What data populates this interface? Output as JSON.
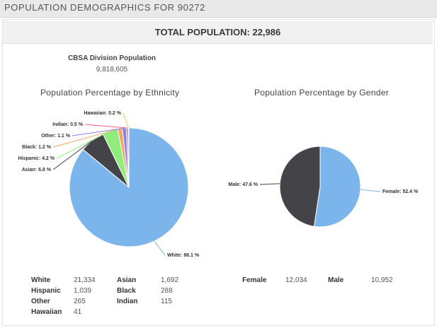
{
  "header": {
    "title": "POPULATION DEMOGRAPHICS FOR 90272"
  },
  "summary": {
    "total_label": "TOTAL POPULATION:",
    "total_value": "22,986",
    "cbsa_label": "CBSA Division Population",
    "cbsa_value": "9,818,605"
  },
  "chart_data": [
    {
      "type": "pie",
      "title": "Population Percentage by Ethnicity",
      "categories": [
        "White",
        "Asian",
        "Hispanic",
        "Black",
        "Other",
        "Indian",
        "Hawaiian"
      ],
      "values": [
        86.1,
        6.8,
        4.2,
        1.2,
        1.1,
        0.5,
        0.2
      ],
      "labels": [
        "White: 86.1 %",
        "Asian: 6.8 %",
        "Hispanic: 4.2 %",
        "Black: 1.2 %",
        "Other: 1.1 %",
        "Indian: 0.5 %",
        "Hawaiian: 0.2 %"
      ],
      "colors": [
        "#7cb5ec",
        "#434348",
        "#90ed7d",
        "#f7a35c",
        "#8085e9",
        "#f15c80",
        "#e4d354"
      ]
    },
    {
      "type": "pie",
      "title": "Population Percentage by Gender",
      "categories": [
        "Female",
        "Male"
      ],
      "values": [
        52.4,
        47.6
      ],
      "labels": [
        "Female: 52.4 %",
        "Male: 47.6 %"
      ],
      "colors": [
        "#7cb5ec",
        "#434348"
      ]
    }
  ],
  "ethnicity_table": [
    {
      "label": "White",
      "value": "21,334"
    },
    {
      "label": "Asian",
      "value": "1,692"
    },
    {
      "label": "Hispanic",
      "value": "1,039"
    },
    {
      "label": "Black",
      "value": "288"
    },
    {
      "label": "Other",
      "value": "265"
    },
    {
      "label": "Indian",
      "value": "115"
    },
    {
      "label": "Hawaiian",
      "value": "41"
    }
  ],
  "gender_table": [
    {
      "label": "Female",
      "value": "12,034"
    },
    {
      "label": "Male",
      "value": "10,952"
    }
  ]
}
